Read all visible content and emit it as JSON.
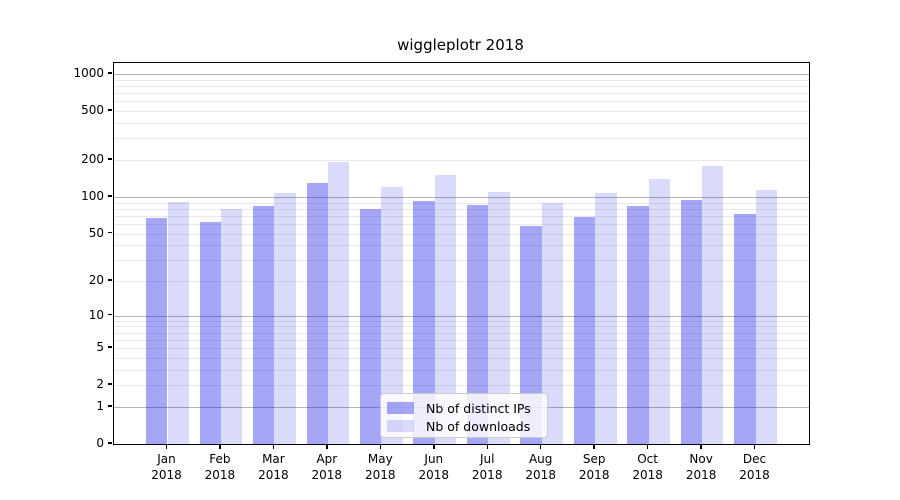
{
  "chart_data": {
    "type": "bar",
    "title": "wiggleplotr 2018",
    "x_labels": [
      {
        "line1": "Jan",
        "line2": "2018"
      },
      {
        "line1": "Feb",
        "line2": "2018"
      },
      {
        "line1": "Mar",
        "line2": "2018"
      },
      {
        "line1": "Apr",
        "line2": "2018"
      },
      {
        "line1": "May",
        "line2": "2018"
      },
      {
        "line1": "Jun",
        "line2": "2018"
      },
      {
        "line1": "Jul",
        "line2": "2018"
      },
      {
        "line1": "Aug",
        "line2": "2018"
      },
      {
        "line1": "Sep",
        "line2": "2018"
      },
      {
        "line1": "Oct",
        "line2": "2018"
      },
      {
        "line1": "Nov",
        "line2": "2018"
      },
      {
        "line1": "Dec",
        "line2": "2018"
      }
    ],
    "series": [
      {
        "name": "Nb of distinct IPs",
        "color": "rgba(22,22,232,0.38)",
        "values": [
          67,
          62,
          84,
          130,
          79,
          93,
          86,
          58,
          69,
          85,
          94,
          72
        ]
      },
      {
        "name": "Nb of downloads",
        "color": "rgba(22,22,232,0.16)",
        "values": [
          91,
          79,
          108,
          194,
          120,
          151,
          110,
          89,
          108,
          140,
          178,
          114
        ]
      }
    ],
    "y_scale": "log1p",
    "y_ticks": [
      0,
      1,
      2,
      5,
      10,
      20,
      50,
      100,
      200,
      500,
      1000
    ],
    "ylim": [
      0,
      1230
    ],
    "grid": true,
    "legend_position": "lower center",
    "colors": {
      "grid_major": "#b3b3b3",
      "grid_minor": "#e9e9e9",
      "spine": "#000000",
      "background": "#ffffff"
    }
  }
}
